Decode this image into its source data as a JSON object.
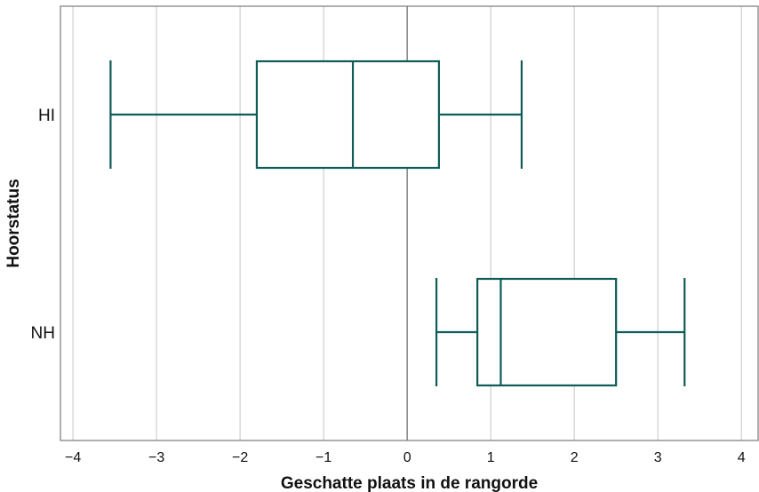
{
  "chart_data": {
    "type": "boxplot",
    "orientation": "horizontal",
    "xlabel": "Geschatte plaats in de rangorde",
    "ylabel": "Hoorstatus",
    "xlim": [
      -4.15,
      4.2
    ],
    "xticks": [
      -4,
      -3,
      -2,
      -1,
      0,
      1,
      2,
      3,
      4
    ],
    "xtick_labels": [
      "−4",
      "−3",
      "−2",
      "−1",
      "0",
      "1",
      "2",
      "3",
      "4"
    ],
    "grid": true,
    "reference_line": 0,
    "color": "#0f5c56",
    "categories": [
      "HI",
      "NH"
    ],
    "boxes": [
      {
        "category": "HI",
        "whisker_low": -3.55,
        "q1": -1.8,
        "median": -0.65,
        "q3": 0.38,
        "whisker_high": 1.37
      },
      {
        "category": "NH",
        "whisker_low": 0.35,
        "q1": 0.84,
        "median": 1.12,
        "q3": 2.5,
        "whisker_high": 3.32
      }
    ]
  }
}
